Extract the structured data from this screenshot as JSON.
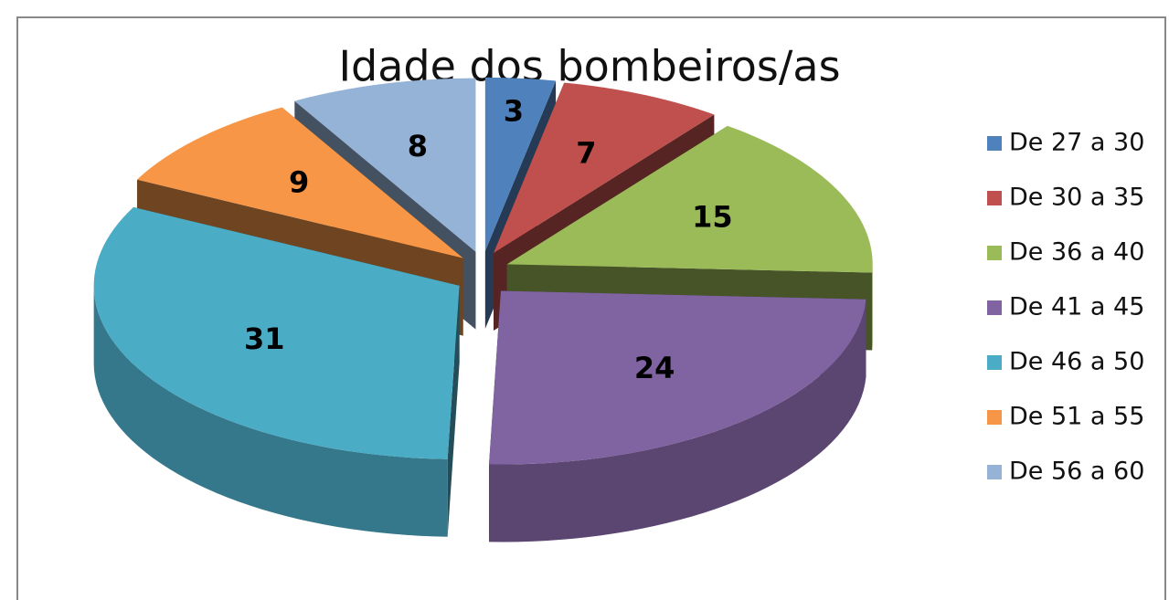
{
  "chart_data": {
    "type": "pie",
    "title": "Idade dos bombeiros/as",
    "categories": [
      "De 27 a 30",
      "De 30 a 35",
      "De 36 a 40",
      "De 41 a 45",
      "De 46 a 50",
      "De 51 a 55",
      "De 56 a 60"
    ],
    "values": [
      3,
      7,
      15,
      24,
      31,
      9,
      8
    ],
    "colors": [
      "#4f81bd",
      "#c0504d",
      "#9bbb59",
      "#8064a2",
      "#4bacc6",
      "#f79646",
      "#95b3d7"
    ],
    "legend": "right"
  }
}
